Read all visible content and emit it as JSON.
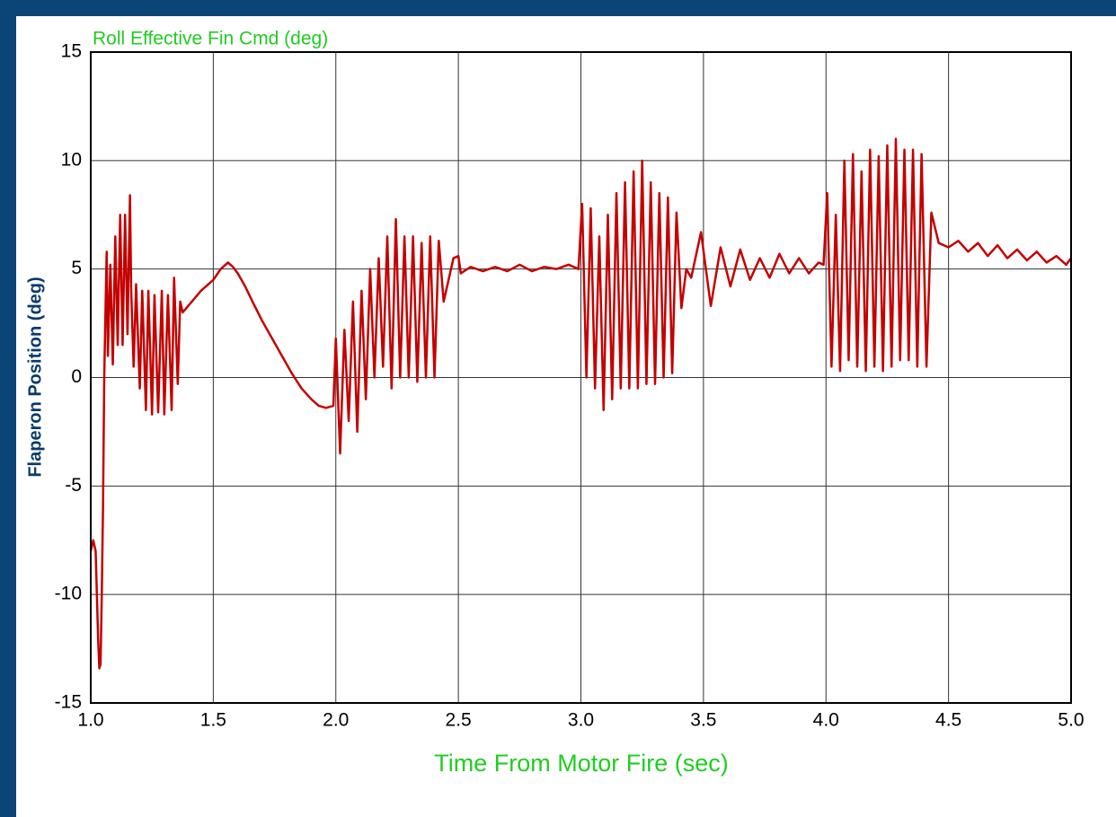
{
  "chart_data": {
    "type": "line",
    "title": "Roll Effective Fin Cmd (deg)",
    "x_label": "Time From Motor Fire (sec)",
    "y_label": "Flaperon Position (deg)",
    "xlim": [
      1,
      5
    ],
    "ylim": [
      -15,
      15
    ],
    "xticks": [
      {
        "value": 1,
        "label": "1.0"
      },
      1.5,
      {
        "value": 2,
        "label": "2.0"
      },
      2.5,
      {
        "value": 3,
        "label": "3.0"
      },
      3.5,
      {
        "value": 4,
        "label": "4.0"
      },
      4.5,
      {
        "value": 5,
        "label": "5.0"
      }
    ],
    "yticks": [
      -15,
      -10,
      -5,
      0,
      5,
      10,
      15
    ],
    "grid": true,
    "x": [
      1.0,
      1.01,
      1.02,
      1.03,
      1.035,
      1.04,
      1.045,
      1.05,
      1.055,
      1.06,
      1.065,
      1.07,
      1.08,
      1.09,
      1.1,
      1.11,
      1.12,
      1.13,
      1.14,
      1.15,
      1.16,
      1.165,
      1.175,
      1.185,
      1.2,
      1.21,
      1.225,
      1.235,
      1.25,
      1.26,
      1.275,
      1.29,
      1.3,
      1.315,
      1.33,
      1.34,
      1.355,
      1.365,
      1.375,
      1.39,
      1.42,
      1.45,
      1.48,
      1.5,
      1.53,
      1.56,
      1.58,
      1.6,
      1.63,
      1.66,
      1.7,
      1.74,
      1.78,
      1.82,
      1.86,
      1.9,
      1.93,
      1.96,
      1.99,
      2.0,
      2.0175,
      2.035,
      2.0525,
      2.07,
      2.0875,
      2.105,
      2.1225,
      2.14,
      2.1575,
      2.175,
      2.1925,
      2.21,
      2.2275,
      2.245,
      2.2625,
      2.28,
      2.2975,
      2.315,
      2.3325,
      2.35,
      2.3675,
      2.385,
      2.4025,
      2.42,
      2.44,
      2.46,
      2.48,
      2.5,
      2.51,
      2.55,
      2.6,
      2.65,
      2.7,
      2.75,
      2.8,
      2.85,
      2.9,
      2.95,
      2.99,
      3.005,
      3.0225,
      3.04,
      3.0575,
      3.075,
      3.0925,
      3.11,
      3.1275,
      3.145,
      3.1625,
      3.18,
      3.1975,
      3.215,
      3.2325,
      3.25,
      3.2675,
      3.285,
      3.3025,
      3.32,
      3.3375,
      3.355,
      3.3725,
      3.39,
      3.41,
      3.43,
      3.45,
      3.49,
      3.53,
      3.57,
      3.61,
      3.65,
      3.69,
      3.73,
      3.77,
      3.81,
      3.85,
      3.89,
      3.93,
      3.97,
      3.99,
      4.005,
      4.0225,
      4.04,
      4.0575,
      4.075,
      4.0925,
      4.11,
      4.1275,
      4.145,
      4.1625,
      4.18,
      4.1975,
      4.215,
      4.2325,
      4.25,
      4.2675,
      4.285,
      4.3025,
      4.32,
      4.3375,
      4.355,
      4.3725,
      4.39,
      4.41,
      4.43,
      4.46,
      4.5,
      4.54,
      4.58,
      4.62,
      4.66,
      4.7,
      4.74,
      4.78,
      4.82,
      4.86,
      4.9,
      4.94,
      4.98,
      5.0
    ],
    "series": [
      {
        "color": "#c40000",
        "values": [
          -8,
          -7.5,
          -8,
          -12,
          -13.4,
          -13.2,
          -10,
          -6,
          0,
          3,
          5.8,
          1,
          5.2,
          0.6,
          6.5,
          1.5,
          7.5,
          1.5,
          7.5,
          2,
          8.4,
          4,
          0.5,
          4.3,
          -0.5,
          4,
          -1.5,
          4,
          -1.7,
          3.8,
          -1.6,
          4,
          -1.7,
          3.8,
          -1.5,
          4.6,
          -0.3,
          3.5,
          3,
          3.2,
          3.6,
          4,
          4.3,
          4.5,
          5,
          5.3,
          5.1,
          4.8,
          4.2,
          3.5,
          2.6,
          1.8,
          1,
          0.2,
          -0.5,
          -1,
          -1.3,
          -1.4,
          -1.3,
          1.8,
          -3.5,
          2.2,
          -2,
          3.5,
          -2.5,
          4,
          -1,
          5,
          0,
          5.5,
          0.5,
          6.5,
          -0.5,
          7.3,
          0,
          6.5,
          0,
          6.5,
          -0.2,
          6.2,
          0,
          6.5,
          0,
          6.3,
          3.5,
          4.5,
          5.5,
          5.6,
          4.8,
          5.1,
          4.9,
          5.1,
          4.9,
          5.2,
          4.9,
          5.1,
          5,
          5.2,
          5,
          8,
          0,
          7.8,
          -0.5,
          6.5,
          -1.5,
          7.5,
          -1,
          8.5,
          -0.5,
          9,
          -0.5,
          9.5,
          -0.5,
          10,
          -0.3,
          9,
          -0.3,
          8.5,
          0,
          8.3,
          0.2,
          7.6,
          3.2,
          5,
          4.6,
          6.7,
          3.3,
          6,
          4.2,
          5.9,
          4.5,
          5.5,
          4.6,
          5.7,
          4.8,
          5.5,
          4.8,
          5.3,
          5.2,
          8.5,
          0.5,
          7.5,
          0.3,
          10,
          0.8,
          10.3,
          0.5,
          9.5,
          0.3,
          10.5,
          0.5,
          10.2,
          0.3,
          10.7,
          0.5,
          11,
          0.8,
          10.5,
          0.8,
          10.5,
          0.5,
          10.3,
          0.5,
          7.6,
          6.2,
          6,
          6.3,
          5.8,
          6.2,
          5.6,
          6.1,
          5.5,
          5.9,
          5.4,
          5.8,
          5.3,
          5.6,
          5.2,
          5.5
        ]
      }
    ]
  }
}
